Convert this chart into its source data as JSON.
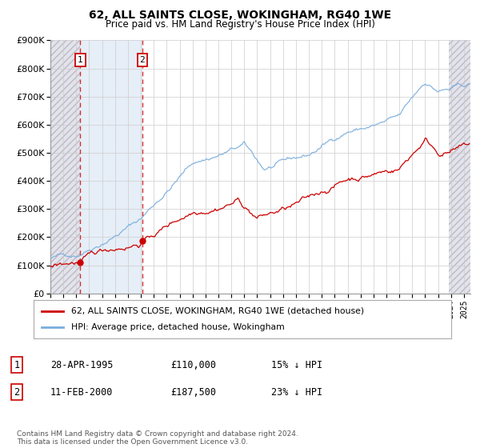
{
  "title": "62, ALL SAINTS CLOSE, WOKINGHAM, RG40 1WE",
  "subtitle": "Price paid vs. HM Land Registry's House Price Index (HPI)",
  "legend_line1": "62, ALL SAINTS CLOSE, WOKINGHAM, RG40 1WE (detached house)",
  "legend_line2": "HPI: Average price, detached house, Wokingham",
  "footnote": "Contains HM Land Registry data © Crown copyright and database right 2024.\nThis data is licensed under the Open Government Licence v3.0.",
  "transaction1_date": 1995.32,
  "transaction1_label": "28-APR-1995",
  "transaction1_price": 110000,
  "transaction1_text": "£110,000",
  "transaction1_hpi": "15% ↓ HPI",
  "transaction2_date": 2000.11,
  "transaction2_label": "11-FEB-2000",
  "transaction2_price": 187500,
  "transaction2_text": "£187,500",
  "transaction2_hpi": "23% ↓ HPI",
  "ylim": [
    0,
    900000
  ],
  "xlim_left": 1993.0,
  "xlim_right": 2025.5,
  "hatch_left_end": 1995.32,
  "hatch_right_start": 2023.83,
  "line_color_price": "#cc0000",
  "line_color_hpi": "#7aaddc",
  "background_color": "#ffffff",
  "grid_color": "#cccccc"
}
